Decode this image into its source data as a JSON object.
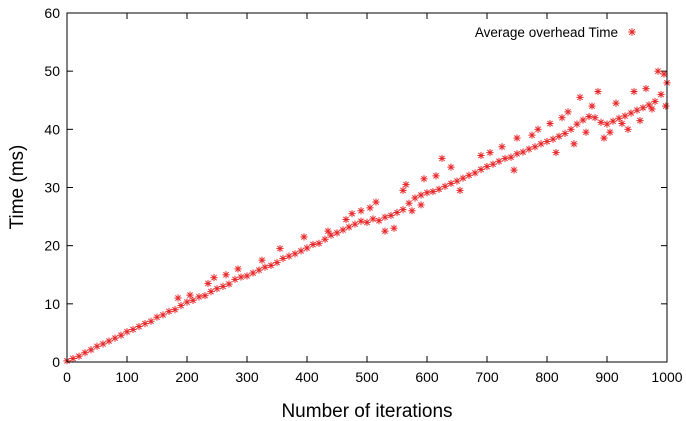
{
  "chart_data": {
    "type": "scatter",
    "title": "",
    "xlabel": "Number of iterations",
    "ylabel": "Time (ms)",
    "xlim": [
      0,
      1000
    ],
    "ylim": [
      0,
      60
    ],
    "xticks": [
      "0",
      "100",
      "200",
      "300",
      "400",
      "500",
      "600",
      "700",
      "800",
      "900",
      "1000"
    ],
    "yticks": [
      "0",
      "10",
      "20",
      "30",
      "40",
      "50",
      "60"
    ],
    "grid": false,
    "legend_position": "top-right",
    "marker": "asterisk",
    "series": [
      {
        "name": "Average overhead Time",
        "color": "#e8282a",
        "points": [
          [
            0,
            0.2
          ],
          [
            10,
            0.6
          ],
          [
            20,
            1.0
          ],
          [
            30,
            1.6
          ],
          [
            40,
            2.1
          ],
          [
            50,
            2.7
          ],
          [
            60,
            3.1
          ],
          [
            70,
            3.6
          ],
          [
            80,
            4.1
          ],
          [
            90,
            4.6
          ],
          [
            100,
            5.2
          ],
          [
            110,
            5.6
          ],
          [
            120,
            6.1
          ],
          [
            130,
            6.6
          ],
          [
            140,
            7.0
          ],
          [
            150,
            7.7
          ],
          [
            160,
            8.1
          ],
          [
            170,
            8.7
          ],
          [
            180,
            9.0
          ],
          [
            190,
            9.7
          ],
          [
            200,
            10.3
          ],
          [
            210,
            10.6
          ],
          [
            220,
            11.2
          ],
          [
            230,
            11.4
          ],
          [
            240,
            12.1
          ],
          [
            250,
            12.6
          ],
          [
            260,
            13.0
          ],
          [
            270,
            13.4
          ],
          [
            280,
            14.2
          ],
          [
            290,
            14.6
          ],
          [
            300,
            14.8
          ],
          [
            310,
            15.3
          ],
          [
            320,
            15.8
          ],
          [
            330,
            16.3
          ],
          [
            340,
            16.6
          ],
          [
            350,
            17.1
          ],
          [
            360,
            17.8
          ],
          [
            370,
            18.2
          ],
          [
            380,
            18.6
          ],
          [
            390,
            19.1
          ],
          [
            400,
            19.6
          ],
          [
            410,
            20.2
          ],
          [
            420,
            20.4
          ],
          [
            430,
            21.1
          ],
          [
            440,
            21.8
          ],
          [
            450,
            22.2
          ],
          [
            460,
            22.7
          ],
          [
            470,
            23.2
          ],
          [
            480,
            23.7
          ],
          [
            490,
            24.2
          ],
          [
            500,
            24.0
          ],
          [
            510,
            24.6
          ],
          [
            520,
            24.3
          ],
          [
            530,
            24.9
          ],
          [
            540,
            25.2
          ],
          [
            550,
            25.7
          ],
          [
            560,
            26.2
          ],
          [
            570,
            27.3
          ],
          [
            580,
            28.2
          ],
          [
            590,
            28.7
          ],
          [
            600,
            29.1
          ],
          [
            610,
            29.3
          ],
          [
            620,
            29.7
          ],
          [
            630,
            30.2
          ],
          [
            640,
            30.7
          ],
          [
            650,
            31.1
          ],
          [
            660,
            31.6
          ],
          [
            670,
            32.1
          ],
          [
            680,
            32.5
          ],
          [
            690,
            33.1
          ],
          [
            700,
            33.6
          ],
          [
            710,
            34.0
          ],
          [
            720,
            34.5
          ],
          [
            730,
            35.0
          ],
          [
            740,
            35.2
          ],
          [
            750,
            35.8
          ],
          [
            760,
            36.1
          ],
          [
            770,
            36.6
          ],
          [
            780,
            37.0
          ],
          [
            790,
            37.5
          ],
          [
            800,
            37.9
          ],
          [
            810,
            38.3
          ],
          [
            820,
            38.8
          ],
          [
            830,
            39.3
          ],
          [
            840,
            40.0
          ],
          [
            850,
            40.9
          ],
          [
            860,
            41.6
          ],
          [
            870,
            42.2
          ],
          [
            880,
            42.0
          ],
          [
            890,
            41.2
          ],
          [
            900,
            40.9
          ],
          [
            910,
            41.4
          ],
          [
            920,
            41.9
          ],
          [
            930,
            42.3
          ],
          [
            940,
            42.8
          ],
          [
            950,
            43.3
          ],
          [
            960,
            43.7
          ],
          [
            970,
            44.2
          ],
          [
            980,
            44.8
          ],
          [
            990,
            46.0
          ],
          [
            1000,
            48.0
          ],
          [
            185,
            11.0
          ],
          [
            205,
            11.5
          ],
          [
            235,
            13.5
          ],
          [
            245,
            14.5
          ],
          [
            265,
            15.0
          ],
          [
            285,
            16.0
          ],
          [
            325,
            17.5
          ],
          [
            355,
            19.5
          ],
          [
            395,
            21.5
          ],
          [
            435,
            22.5
          ],
          [
            465,
            24.5
          ],
          [
            475,
            25.5
          ],
          [
            490,
            26.0
          ],
          [
            505,
            26.5
          ],
          [
            515,
            27.5
          ],
          [
            530,
            22.5
          ],
          [
            545,
            23.0
          ],
          [
            560,
            29.5
          ],
          [
            565,
            30.5
          ],
          [
            575,
            26.0
          ],
          [
            590,
            27.0
          ],
          [
            595,
            31.5
          ],
          [
            615,
            32.0
          ],
          [
            625,
            35.0
          ],
          [
            640,
            33.5
          ],
          [
            655,
            29.5
          ],
          [
            690,
            35.5
          ],
          [
            705,
            36.0
          ],
          [
            725,
            37.0
          ],
          [
            745,
            33.0
          ],
          [
            750,
            38.5
          ],
          [
            775,
            39.0
          ],
          [
            785,
            40.0
          ],
          [
            805,
            41.0
          ],
          [
            815,
            36.0
          ],
          [
            825,
            42.0
          ],
          [
            835,
            43.0
          ],
          [
            845,
            37.5
          ],
          [
            855,
            45.5
          ],
          [
            865,
            39.5
          ],
          [
            875,
            44.0
          ],
          [
            885,
            46.5
          ],
          [
            895,
            38.5
          ],
          [
            905,
            39.5
          ],
          [
            915,
            44.5
          ],
          [
            925,
            41.0
          ],
          [
            935,
            40.0
          ],
          [
            945,
            46.5
          ],
          [
            955,
            41.5
          ],
          [
            965,
            47.0
          ],
          [
            975,
            43.5
          ],
          [
            985,
            50.0
          ],
          [
            995,
            49.5
          ],
          [
            998,
            44.0
          ]
        ]
      }
    ]
  }
}
